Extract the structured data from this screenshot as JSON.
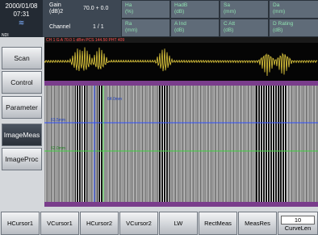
{
  "header": {
    "date": "2000/01/08",
    "time": "07:31",
    "logo": "NDI",
    "gain": {
      "label": "Gain",
      "unit": "(dB)2",
      "value": "70.0 + 0.0"
    },
    "channel": {
      "label": "Channel",
      "value": "1 / 1"
    },
    "fields": [
      {
        "name": "Ha",
        "unit": "(%)"
      },
      {
        "name": "HadB",
        "unit": "(dB)"
      },
      {
        "name": "Sa",
        "unit": "(mm)"
      },
      {
        "name": "Da",
        "unit": "(mm)"
      },
      {
        "name": "Ra",
        "unit": "(mm)"
      },
      {
        "name": "A Ind",
        "unit": "(dB)"
      },
      {
        "name": "C Att",
        "unit": "(dB)"
      },
      {
        "name": "D Rating",
        "unit": "(dB)"
      }
    ]
  },
  "status": "CH 1 G A 70.0 1 dBm PCS 144.50 PHT 409",
  "cursor_labels": [
    "64.0mm",
    "63.5mm",
    "62.0mm"
  ],
  "menu": [
    "Scan",
    "Control",
    "Parameter",
    "ImageMeas",
    "ImageProc"
  ],
  "toolbar": [
    "HCursor1",
    "VCursor1",
    "HCursor2",
    "VCursor2",
    "LW",
    "RectMeas",
    "MeasRes"
  ],
  "curve": {
    "value": "10",
    "label": "CurveLen"
  }
}
